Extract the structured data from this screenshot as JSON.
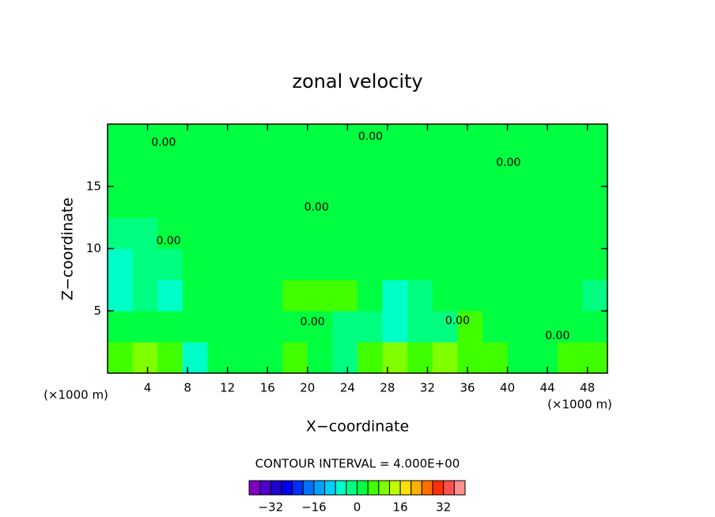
{
  "chart_data": {
    "type": "contour",
    "title": "zonal velocity",
    "xlabel": "X−coordinate",
    "ylabel": "Z−coordinate",
    "x_unit_left": "(×1000 m)",
    "x_unit_right": "(×1000 m)",
    "xlim": [
      0,
      50
    ],
    "ylim": [
      0,
      20
    ],
    "xticks": [
      4,
      8,
      12,
      16,
      20,
      24,
      28,
      32,
      36,
      40,
      44,
      48
    ],
    "yticks": [
      5,
      10,
      15
    ],
    "xbins": [
      0,
      2.5,
      5,
      7.5,
      10,
      12.5,
      15,
      17.5,
      20,
      22.5,
      25,
      27.5,
      30,
      32.5,
      35,
      37.5,
      40,
      42.5,
      45,
      47.5,
      50
    ],
    "zbins": [
      0,
      2.5,
      5,
      7.5,
      10,
      12.5,
      15,
      17.5,
      20
    ],
    "values": [
      [
        6,
        10,
        6,
        -6,
        2,
        2,
        2,
        4,
        2,
        -2,
        6,
        8,
        6,
        10,
        6,
        6,
        2,
        2,
        6,
        6
      ],
      [
        2,
        2,
        2,
        2,
        2,
        2,
        2,
        2,
        2,
        -2,
        -2,
        -6,
        -2,
        -2,
        6,
        2,
        2,
        2,
        2,
        2
      ],
      [
        -6,
        -2,
        -6,
        2,
        2,
        2,
        2,
        6,
        6,
        6,
        2,
        -6,
        -2,
        2,
        2,
        2,
        2,
        2,
        2,
        -2
      ],
      [
        -6,
        -2,
        -2,
        2,
        2,
        2,
        2,
        2,
        2,
        2,
        2,
        2,
        2,
        2,
        2,
        2,
        2,
        2,
        2,
        2
      ],
      [
        -2,
        -2,
        2,
        2,
        2,
        2,
        2,
        2,
        2,
        2,
        2,
        2,
        2,
        2,
        2,
        2,
        2,
        2,
        2,
        2
      ],
      [
        2,
        2,
        2,
        2,
        2,
        2,
        2,
        2,
        2,
        2,
        2,
        2,
        2,
        2,
        2,
        2,
        2,
        2,
        2,
        2
      ],
      [
        2,
        2,
        2,
        2,
        2,
        2,
        2,
        2,
        2,
        2,
        2,
        2,
        2,
        2,
        2,
        2,
        2,
        2,
        2,
        2
      ],
      [
        2,
        2,
        2,
        2,
        2,
        2,
        2,
        2,
        2,
        2,
        2,
        2,
        2,
        2,
        2,
        2,
        2,
        2,
        2,
        2
      ]
    ],
    "contour_labels": [
      {
        "text": "0.00",
        "x": 5.6,
        "z": 18.5
      },
      {
        "text": "0.00",
        "x": 26.3,
        "z": 19.0
      },
      {
        "text": "0.00",
        "x": 40.1,
        "z": 16.9
      },
      {
        "text": "0.00",
        "x": 6.1,
        "z": 10.6
      },
      {
        "text": "0.00",
        "x": 20.9,
        "z": 13.3
      },
      {
        "text": "0.00",
        "x": 20.5,
        "z": 4.1
      },
      {
        "text": "0.00",
        "x": 35.0,
        "z": 4.2
      },
      {
        "text": "0.00",
        "x": 45.0,
        "z": 3.0
      }
    ],
    "contour_interval": "CONTOUR INTERVAL = 4.000E+00",
    "colorbar": {
      "levels": [
        -40,
        -36,
        -32,
        -28,
        -24,
        -20,
        -16,
        -12,
        -8,
        -4,
        0,
        4,
        8,
        12,
        16,
        20,
        24,
        28,
        32,
        36,
        40
      ],
      "colors": [
        "#8000c0",
        "#5000c8",
        "#2000d0",
        "#0000e8",
        "#0030ff",
        "#0070ff",
        "#00a0ff",
        "#00d0ff",
        "#00ffc8",
        "#00ff80",
        "#00ff40",
        "#40ff00",
        "#80ff00",
        "#c0ff00",
        "#ffe000",
        "#ffb000",
        "#ff7000",
        "#ff3000",
        "#ff5050",
        "#ff9090"
      ],
      "ticks": [
        {
          "value": -32,
          "label": "−32"
        },
        {
          "value": -16,
          "label": "−16"
        },
        0,
        16,
        32
      ]
    }
  }
}
